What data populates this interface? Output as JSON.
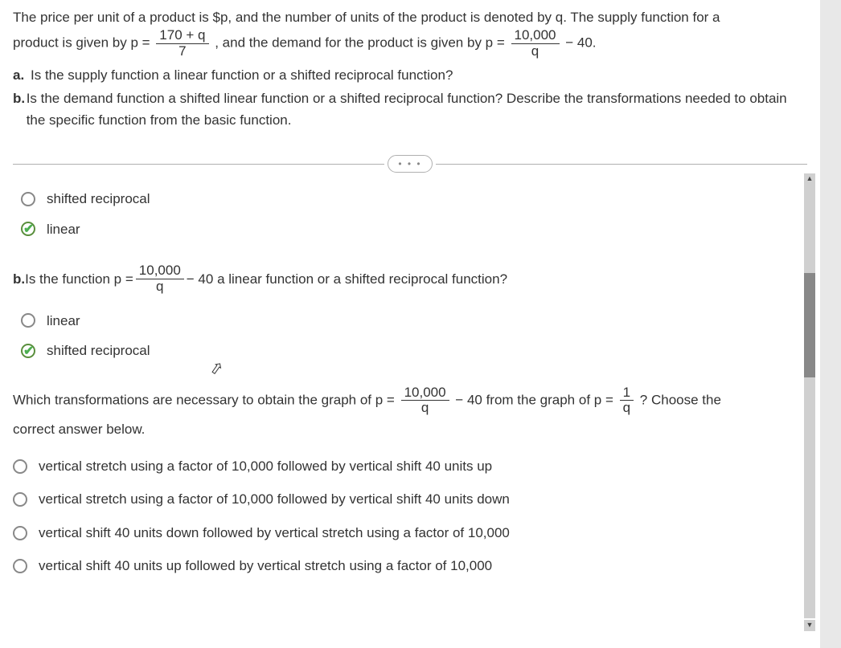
{
  "problem": {
    "line1_prefix": "The price per unit of a product is $p, and the number of units of the product is denoted by q. The supply function for a",
    "line2_prefix": "product is given by p = ",
    "supply_num": "170 + q",
    "supply_den": "7",
    "line2_mid": ", and the demand for the product is given by p = ",
    "demand_num": "10,000",
    "demand_den": "q",
    "line2_suffix": " − 40.",
    "a_label": "a.",
    "a_text": "Is the supply function a linear function or a shifted reciprocal function?",
    "b_label": "b.",
    "b_text": "Is the demand function a shifted linear function or a shifted reciprocal function? Describe the transformations needed to obtain the specific function from the basic function."
  },
  "dots": "• • •",
  "section_a": {
    "options": [
      {
        "label": "shifted reciprocal",
        "selected": false
      },
      {
        "label": "linear",
        "selected": true
      }
    ]
  },
  "question_b": {
    "prefix_bold": "b.",
    "prefix": " Is the function p = ",
    "num": "10,000",
    "den": "q",
    "suffix": " − 40 a linear function or a shifted reciprocal function?"
  },
  "section_b": {
    "options": [
      {
        "label": "linear",
        "selected": false
      },
      {
        "label": "shifted reciprocal",
        "selected": true
      }
    ]
  },
  "question_trans": {
    "prefix": "Which transformations are necessary to obtain the graph of p = ",
    "num1": "10,000",
    "den1": "q",
    "mid": " − 40 from the graph of  p = ",
    "num2": "1",
    "den2": "q",
    "suffix": "? Choose the",
    "line2": "correct answer below."
  },
  "section_trans": {
    "options": [
      {
        "label": "vertical stretch using a factor of 10,000 followed by vertical shift 40 units up",
        "selected": false
      },
      {
        "label": "vertical stretch using a factor of 10,000 followed by vertical shift 40 units down",
        "selected": false
      },
      {
        "label": "vertical shift 40 units down followed by vertical stretch using a factor of 10,000",
        "selected": false
      },
      {
        "label": "vertical shift 40 units up followed by vertical stretch using a factor of 10,000",
        "selected": false
      }
    ]
  },
  "colors": {
    "text": "#333333",
    "correct": "#4caf50",
    "border": "#b0b0b0"
  }
}
